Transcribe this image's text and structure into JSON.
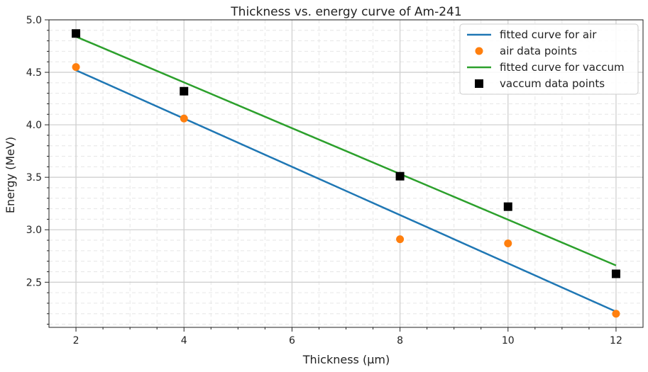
{
  "chart_data": {
    "type": "scatter",
    "title": "Thickness vs. energy curve of Am-241",
    "xlabel": "Thickness (μm)",
    "ylabel": "Energy (MeV)",
    "xlim": [
      1.5,
      12.5
    ],
    "ylim": [
      2.07,
      5.0
    ],
    "xticks": [
      2,
      4,
      6,
      8,
      10,
      12
    ],
    "yticks": [
      2.5,
      3.0,
      3.5,
      4.0,
      4.5,
      5.0
    ],
    "xtick_labels": [
      "2",
      "4",
      "6",
      "8",
      "10",
      "12"
    ],
    "ytick_labels": [
      "2.5",
      "3.0",
      "3.5",
      "4.0",
      "4.5",
      "5.0"
    ],
    "grid": true,
    "legend": "top-right",
    "series": [
      {
        "name": "fitted curve for air",
        "kind": "line",
        "color": "#1f77b4",
        "x": [
          2,
          12
        ],
        "y": [
          4.52,
          2.22
        ]
      },
      {
        "name": "air data points",
        "kind": "marker-circle",
        "color": "#ff7f0e",
        "x": [
          2,
          4,
          8,
          10,
          12
        ],
        "y": [
          4.55,
          4.06,
          2.91,
          2.87,
          2.2
        ]
      },
      {
        "name": "fitted curve for vaccum",
        "kind": "line",
        "color": "#2ca02c",
        "x": [
          2,
          12
        ],
        "y": [
          4.84,
          2.66
        ]
      },
      {
        "name": "vaccum data points",
        "kind": "marker-square",
        "color": "#000000",
        "x": [
          2,
          4,
          8,
          10,
          12
        ],
        "y": [
          4.87,
          4.32,
          3.51,
          3.22,
          2.58
        ]
      }
    ]
  }
}
